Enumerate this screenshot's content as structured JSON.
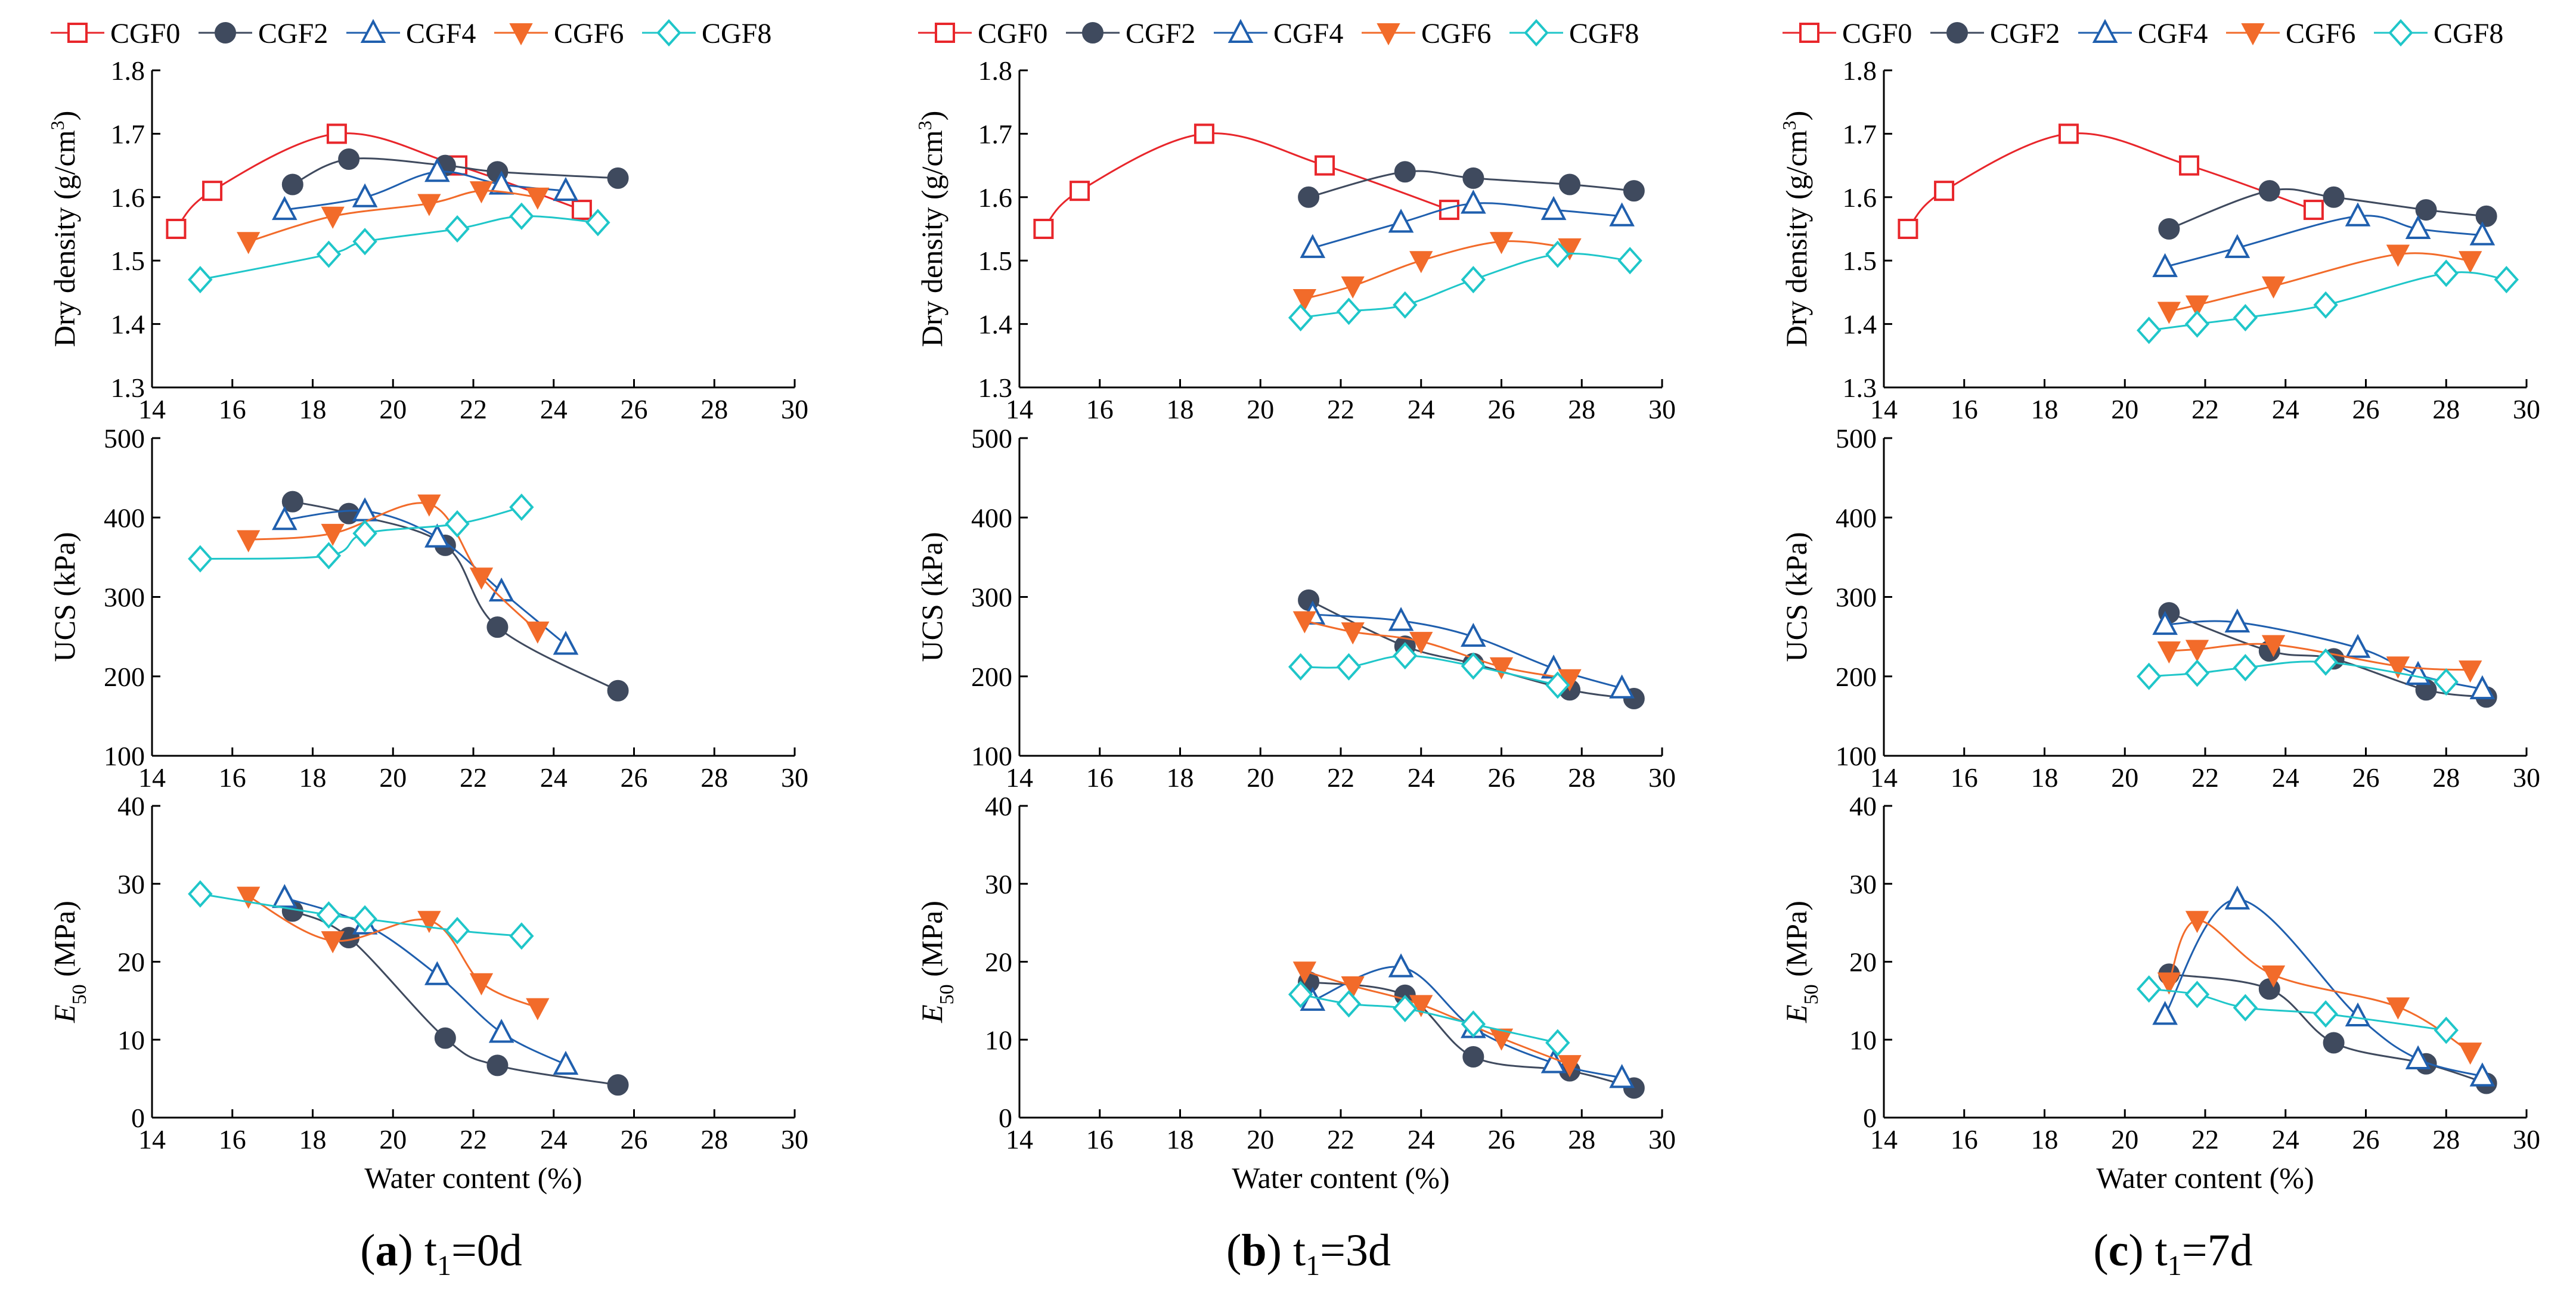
{
  "chart_data": [
    {
      "type": "line",
      "panel": "a",
      "caption": {
        "letter": "a",
        "t_label": "t",
        "t_sub": "1",
        "t_value": "=0d"
      },
      "xlabel": "Water content (%)",
      "xlim": [
        14,
        30
      ],
      "xticks": [
        "14",
        "16",
        "18",
        "20",
        "22",
        "24",
        "26",
        "28",
        "30"
      ],
      "subplots": [
        {
          "metric": "density",
          "ylabel": "Dry density (g/cm3)",
          "ylim": [
            1.3,
            1.8
          ],
          "yticks": [
            "1.3",
            "1.4",
            "1.5",
            "1.6",
            "1.7",
            "1.8"
          ],
          "series": [
            {
              "name": "CGF0",
              "x": [
                14.6,
                15.5,
                18.6,
                21.6,
                24.7
              ],
              "y": [
                1.55,
                1.61,
                1.7,
                1.65,
                1.58
              ]
            },
            {
              "name": "CGF2",
              "x": [
                17.5,
                18.9,
                21.3,
                22.6,
                25.6
              ],
              "y": [
                1.62,
                1.66,
                1.65,
                1.64,
                1.63
              ]
            },
            {
              "name": "CGF4",
              "x": [
                17.3,
                19.3,
                21.1,
                22.7,
                24.3
              ],
              "y": [
                1.58,
                1.6,
                1.64,
                1.62,
                1.61
              ]
            },
            {
              "name": "CGF6",
              "x": [
                16.4,
                18.5,
                20.9,
                22.2,
                23.6
              ],
              "y": [
                1.53,
                1.57,
                1.59,
                1.61,
                1.6
              ]
            },
            {
              "name": "CGF8",
              "x": [
                15.2,
                18.4,
                19.3,
                21.6,
                23.2,
                25.1
              ],
              "y": [
                1.47,
                1.51,
                1.53,
                1.55,
                1.57,
                1.56
              ]
            }
          ]
        },
        {
          "metric": "ucs",
          "ylabel": "UCS (kPa)",
          "ylim": [
            100,
            500
          ],
          "yticks": [
            "100",
            "200",
            "300",
            "400",
            "500"
          ],
          "series": [
            {
              "name": "CGF2",
              "x": [
                17.5,
                18.9,
                21.3,
                22.6,
                25.6
              ],
              "y": [
                420,
                405,
                365,
                262,
                182
              ]
            },
            {
              "name": "CGF4",
              "x": [
                17.3,
                19.3,
                21.1,
                22.7,
                24.3
              ],
              "y": [
                397,
                408,
                375,
                307,
                240
              ]
            },
            {
              "name": "CGF6",
              "x": [
                16.4,
                18.5,
                20.9,
                22.2,
                23.6
              ],
              "y": [
                372,
                380,
                417,
                325,
                257
              ]
            },
            {
              "name": "CGF8",
              "x": [
                15.2,
                18.4,
                19.3,
                21.6,
                23.2
              ],
              "y": [
                348,
                352,
                380,
                392,
                413
              ]
            }
          ]
        },
        {
          "metric": "e50",
          "ylabel": "E50 (MPa)",
          "ylim": [
            0,
            40
          ],
          "yticks": [
            "0",
            "10",
            "20",
            "30",
            "40"
          ],
          "series": [
            {
              "name": "CGF2",
              "x": [
                17.5,
                18.9,
                21.3,
                22.6,
                25.6
              ],
              "y": [
                26.5,
                23.1,
                10.2,
                6.7,
                4.2
              ]
            },
            {
              "name": "CGF4",
              "x": [
                17.3,
                19.3,
                21.1,
                22.7,
                24.3
              ],
              "y": [
                28.2,
                24.8,
                18.3,
                10.9,
                6.8
              ]
            },
            {
              "name": "CGF6",
              "x": [
                16.4,
                18.5,
                20.9,
                22.2,
                23.6
              ],
              "y": [
                28.4,
                22.7,
                25.3,
                17.3,
                14.1
              ]
            },
            {
              "name": "CGF8",
              "x": [
                15.2,
                18.4,
                19.3,
                21.6,
                23.2
              ],
              "y": [
                28.7,
                26.0,
                25.5,
                24.0,
                23.3
              ]
            }
          ]
        }
      ]
    },
    {
      "type": "line",
      "panel": "b",
      "caption": {
        "letter": "b",
        "t_label": "t",
        "t_sub": "1",
        "t_value": "=3d"
      },
      "xlabel": "Water content (%)",
      "xlim": [
        14,
        30
      ],
      "xticks": [
        "14",
        "16",
        "18",
        "20",
        "22",
        "24",
        "26",
        "28",
        "30"
      ],
      "subplots": [
        {
          "metric": "density",
          "ylabel": "Dry density (g/cm3)",
          "ylim": [
            1.3,
            1.8
          ],
          "yticks": [
            "1.3",
            "1.4",
            "1.5",
            "1.6",
            "1.7",
            "1.8"
          ],
          "series": [
            {
              "name": "CGF0",
              "x": [
                14.6,
                15.5,
                18.6,
                21.6,
                24.7
              ],
              "y": [
                1.55,
                1.61,
                1.7,
                1.65,
                1.58
              ]
            },
            {
              "name": "CGF2",
              "x": [
                21.2,
                23.6,
                25.3,
                27.7,
                29.3
              ],
              "y": [
                1.6,
                1.64,
                1.63,
                1.62,
                1.61
              ]
            },
            {
              "name": "CGF4",
              "x": [
                21.3,
                23.5,
                25.3,
                27.3,
                29.0
              ],
              "y": [
                1.52,
                1.56,
                1.59,
                1.58,
                1.57
              ]
            },
            {
              "name": "CGF6",
              "x": [
                21.1,
                22.3,
                24.0,
                26.0,
                27.7
              ],
              "y": [
                1.44,
                1.46,
                1.5,
                1.53,
                1.52
              ]
            },
            {
              "name": "CGF8",
              "x": [
                21.0,
                22.2,
                23.6,
                25.3,
                27.4,
                29.2
              ],
              "y": [
                1.41,
                1.42,
                1.43,
                1.47,
                1.51,
                1.5
              ]
            }
          ]
        },
        {
          "metric": "ucs",
          "ylabel": "UCS (kPa)",
          "ylim": [
            100,
            500
          ],
          "yticks": [
            "100",
            "200",
            "300",
            "400",
            "500"
          ],
          "series": [
            {
              "name": "CGF2",
              "x": [
                21.2,
                23.6,
                25.3,
                27.7,
                29.3
              ],
              "y": [
                296,
                238,
                216,
                183,
                172
              ]
            },
            {
              "name": "CGF4",
              "x": [
                21.3,
                23.5,
                25.3,
                27.3,
                29.0
              ],
              "y": [
                278,
                270,
                250,
                210,
                185
              ]
            },
            {
              "name": "CGF6",
              "x": [
                21.1,
                22.3,
                24.0,
                26.0,
                27.7
              ],
              "y": [
                270,
                256,
                244,
                212,
                197
              ]
            },
            {
              "name": "CGF8",
              "x": [
                21.0,
                22.2,
                23.6,
                25.3,
                27.4
              ],
              "y": [
                212,
                212,
                226,
                213,
                189
              ]
            }
          ]
        },
        {
          "metric": "e50",
          "ylabel": "E50 (MPa)",
          "ylim": [
            0,
            40
          ],
          "yticks": [
            "0",
            "10",
            "20",
            "30",
            "40"
          ],
          "series": [
            {
              "name": "CGF2",
              "x": [
                21.2,
                23.6,
                25.3,
                27.7,
                29.3
              ],
              "y": [
                17.4,
                15.7,
                7.8,
                6.0,
                3.8
              ]
            },
            {
              "name": "CGF4",
              "x": [
                21.3,
                23.5,
                25.3,
                27.3,
                29.0
              ],
              "y": [
                15.0,
                19.3,
                11.5,
                7.0,
                5.1
              ]
            },
            {
              "name": "CGF6",
              "x": [
                21.1,
                22.3,
                24.0,
                26.0,
                27.7
              ],
              "y": [
                18.8,
                16.9,
                14.5,
                10.2,
                6.8
              ]
            },
            {
              "name": "CGF8",
              "x": [
                21.0,
                22.2,
                23.6,
                25.3,
                27.4
              ],
              "y": [
                15.8,
                14.6,
                14.0,
                12.0,
                9.6
              ]
            }
          ]
        }
      ]
    },
    {
      "type": "line",
      "panel": "c",
      "caption": {
        "letter": "c",
        "t_label": "t",
        "t_sub": "1",
        "t_value": "=7d"
      },
      "xlabel": "Water content (%)",
      "xlim": [
        14,
        30
      ],
      "xticks": [
        "14",
        "16",
        "18",
        "20",
        "22",
        "24",
        "26",
        "28",
        "30"
      ],
      "subplots": [
        {
          "metric": "density",
          "ylabel": "Dry density (g/cm3)",
          "ylim": [
            1.3,
            1.8
          ],
          "yticks": [
            "1.3",
            "1.4",
            "1.5",
            "1.6",
            "1.7",
            "1.8"
          ],
          "series": [
            {
              "name": "CGF0",
              "x": [
                14.6,
                15.5,
                18.6,
                21.6,
                24.7
              ],
              "y": [
                1.55,
                1.61,
                1.7,
                1.65,
                1.58
              ]
            },
            {
              "name": "CGF2",
              "x": [
                21.1,
                23.6,
                25.2,
                27.5,
                29.0
              ],
              "y": [
                1.55,
                1.61,
                1.6,
                1.58,
                1.57
              ]
            },
            {
              "name": "CGF4",
              "x": [
                21.0,
                22.8,
                25.8,
                27.3,
                28.9
              ],
              "y": [
                1.49,
                1.52,
                1.57,
                1.55,
                1.54
              ]
            },
            {
              "name": "CGF6",
              "x": [
                21.1,
                21.8,
                23.7,
                26.8,
                28.6
              ],
              "y": [
                1.42,
                1.43,
                1.46,
                1.51,
                1.5
              ]
            },
            {
              "name": "CGF8",
              "x": [
                20.6,
                21.8,
                23.0,
                25.0,
                28.0,
                29.5
              ],
              "y": [
                1.39,
                1.4,
                1.41,
                1.43,
                1.48,
                1.47
              ]
            }
          ]
        },
        {
          "metric": "ucs",
          "ylabel": "UCS (kPa)",
          "ylim": [
            100,
            500
          ],
          "yticks": [
            "100",
            "200",
            "300",
            "400",
            "500"
          ],
          "series": [
            {
              "name": "CGF2",
              "x": [
                21.1,
                23.6,
                25.2,
                27.5,
                29.0
              ],
              "y": [
                280,
                232,
                222,
                183,
                174
              ]
            },
            {
              "name": "CGF4",
              "x": [
                21.0,
                22.8,
                25.8,
                27.3,
                28.9
              ],
              "y": [
                265,
                268,
                236,
                202,
                184
              ]
            },
            {
              "name": "CGF6",
              "x": [
                21.1,
                21.8,
                23.7,
                26.8,
                28.6
              ],
              "y": [
                232,
                234,
                240,
                213,
                208
              ]
            },
            {
              "name": "CGF8",
              "x": [
                20.6,
                21.8,
                23.0,
                25.0,
                28.0
              ],
              "y": [
                200,
                204,
                211,
                218,
                193
              ]
            }
          ]
        },
        {
          "metric": "e50",
          "ylabel": "E50 (MPa)",
          "ylim": [
            0,
            40
          ],
          "yticks": [
            "0",
            "10",
            "20",
            "30",
            "40"
          ],
          "series": [
            {
              "name": "CGF2",
              "x": [
                21.1,
                23.6,
                25.2,
                27.5,
                29.0
              ],
              "y": [
                18.4,
                16.5,
                9.6,
                6.9,
                4.4
              ]
            },
            {
              "name": "CGF4",
              "x": [
                21.0,
                22.8,
                25.8,
                27.3,
                28.9
              ],
              "y": [
                13.2,
                28.0,
                13.0,
                7.5,
                5.3
              ]
            },
            {
              "name": "CGF6",
              "x": [
                21.1,
                21.8,
                23.7,
                26.8,
                28.6
              ],
              "y": [
                17.4,
                25.3,
                18.3,
                14.2,
                8.4
              ]
            },
            {
              "name": "CGF8",
              "x": [
                20.6,
                21.8,
                23.0,
                25.0,
                28.0
              ],
              "y": [
                16.5,
                15.8,
                14.1,
                13.3,
                11.2
              ]
            }
          ]
        }
      ]
    }
  ],
  "legend": [
    {
      "name": "CGF0",
      "color": "#e8262b",
      "marker": "square-open"
    },
    {
      "name": "CGF2",
      "color": "#3f4a5e",
      "marker": "circle-filled"
    },
    {
      "name": "CGF4",
      "color": "#1f5fae",
      "marker": "triangle-open"
    },
    {
      "name": "CGF6",
      "color": "#f26b2a",
      "marker": "triangle-down-filled"
    },
    {
      "name": "CGF8",
      "color": "#1fc6c9",
      "marker": "diamond-open"
    }
  ]
}
